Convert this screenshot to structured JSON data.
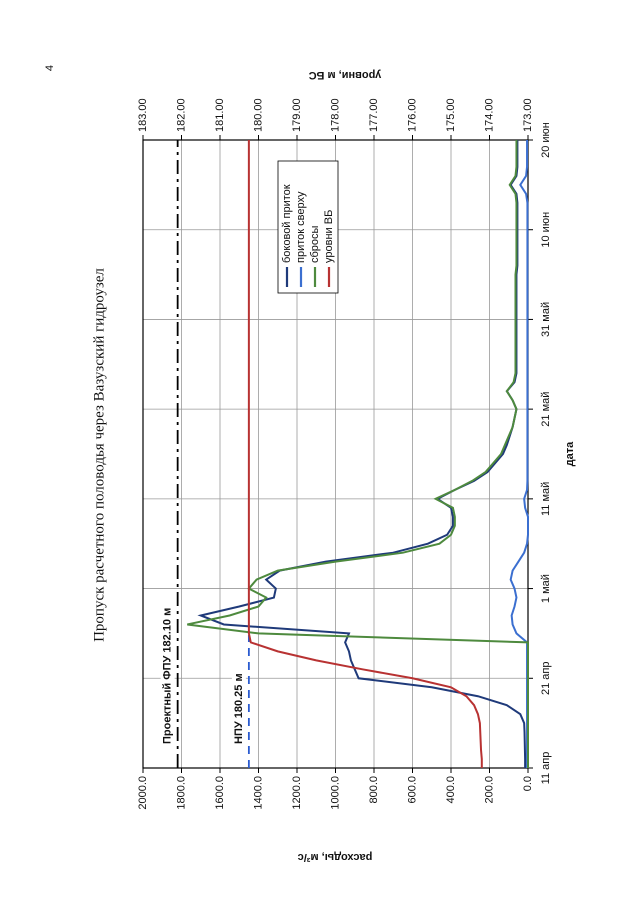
{
  "page_number": "4",
  "chart_data": {
    "type": "line",
    "title": "Пропуск расчетного половодья через Вазузский гидроузел",
    "x_label": "дата",
    "y_label": "расходы, м³/с",
    "y2_label": "уровни, м БС",
    "categories": [
      "11 апр",
      null,
      null,
      null,
      null,
      null,
      null,
      null,
      null,
      null,
      "21 апр",
      null,
      null,
      null,
      null,
      null,
      null,
      null,
      null,
      null,
      "1 май",
      null,
      null,
      null,
      null,
      null,
      null,
      null,
      null,
      null,
      "11 май",
      null,
      null,
      null,
      null,
      null,
      null,
      null,
      null,
      null,
      "21 май",
      null,
      null,
      null,
      null,
      null,
      null,
      null,
      null,
      null,
      "31 май",
      null,
      null,
      null,
      null,
      null,
      null,
      null,
      null,
      null,
      "10 июн",
      null,
      null,
      null,
      null,
      null,
      null,
      null,
      null,
      null,
      "20 июн"
    ],
    "ylim": [
      0,
      2000
    ],
    "yticks": [
      {
        "value": 0,
        "label": "0.0"
      },
      {
        "value": 200,
        "label": "200.0"
      },
      {
        "value": 400,
        "label": "400.0"
      },
      {
        "value": 600,
        "label": "600.0"
      },
      {
        "value": 800,
        "label": "800.0"
      },
      {
        "value": 1000,
        "label": "1000.0"
      },
      {
        "value": 1200,
        "label": "1200.0"
      },
      {
        "value": 1400,
        "label": "1400.0"
      },
      {
        "value": 1600,
        "label": "1600.0"
      },
      {
        "value": 1800,
        "label": "1800.0"
      },
      {
        "value": 2000,
        "label": "2000.0"
      }
    ],
    "y2lim": [
      173,
      183
    ],
    "y2ticks": [
      {
        "value": 173,
        "label": "173.00"
      },
      {
        "value": 174,
        "label": "174.00"
      },
      {
        "value": 175,
        "label": "175.00"
      },
      {
        "value": 176,
        "label": "176.00"
      },
      {
        "value": 177,
        "label": "177.00"
      },
      {
        "value": 178,
        "label": "178.00"
      },
      {
        "value": 179,
        "label": "179.00"
      },
      {
        "value": 180,
        "label": "180.00"
      },
      {
        "value": 181,
        "label": "181.00"
      },
      {
        "value": 182,
        "label": "182.00"
      },
      {
        "value": 183,
        "label": "183.00"
      }
    ],
    "grid": true,
    "legend": "upper right",
    "series": [
      {
        "name": "боковой приток",
        "color": "#1f3a7a",
        "values": [
          15,
          15,
          16,
          17,
          18,
          20,
          40,
          110,
          260,
          500,
          880,
          900,
          920,
          930,
          950,
          930,
          1580,
          1700,
          1500,
          1320,
          1310,
          1360,
          1290,
          1050,
          700,
          520,
          420,
          390,
          390,
          400,
          470,
          380,
          280,
          210,
          170,
          130,
          110,
          95,
          80,
          70,
          60,
          80,
          110,
          70,
          60,
          60,
          60,
          60,
          60,
          60,
          60,
          60,
          60,
          60,
          60,
          60,
          55,
          55,
          55,
          55,
          55,
          55,
          55,
          55,
          60,
          90,
          60,
          55,
          55,
          55,
          55
        ]
      },
      {
        "name": "приток сверху",
        "color": "#3b6fd0",
        "values": [
          5,
          5,
          5,
          5,
          5,
          5,
          5,
          5,
          5,
          5,
          5,
          5,
          5,
          5,
          5,
          60,
          80,
          85,
          70,
          60,
          70,
          90,
          80,
          50,
          20,
          5,
          0,
          0,
          0,
          15,
          20,
          5,
          3,
          3,
          3,
          3,
          3,
          3,
          3,
          3,
          3,
          3,
          3,
          3,
          3,
          3,
          3,
          3,
          3,
          3,
          3,
          3,
          3,
          3,
          3,
          3,
          3,
          3,
          3,
          3,
          3,
          3,
          3,
          3,
          10,
          40,
          10,
          5,
          5,
          5,
          5
        ]
      },
      {
        "name": "сбросы",
        "color": "#4e8a3e",
        "values": [
          0,
          0,
          0,
          0,
          0,
          0,
          0,
          0,
          0,
          0,
          0,
          0,
          0,
          0,
          0,
          1400,
          1770,
          1550,
          1400,
          1360,
          1450,
          1410,
          1300,
          1000,
          650,
          460,
          400,
          380,
          380,
          390,
          480,
          380,
          290,
          220,
          180,
          140,
          120,
          100,
          80,
          70,
          60,
          80,
          110,
          75,
          65,
          65,
          65,
          65,
          65,
          65,
          65,
          65,
          65,
          65,
          65,
          65,
          60,
          60,
          60,
          60,
          60,
          60,
          60,
          60,
          65,
          95,
          65,
          60,
          60,
          60,
          60
        ]
      },
      {
        "name": "уровни ВБ",
        "color": "#b83232",
        "axis": "y2",
        "values": [
          174.2,
          174.2,
          174.22,
          174.23,
          174.24,
          174.25,
          174.3,
          174.4,
          174.6,
          175.0,
          176.0,
          177.3,
          178.5,
          179.5,
          180.2,
          180.25,
          180.25,
          180.25,
          180.25,
          180.25,
          180.25,
          180.25,
          180.25,
          180.25,
          180.25,
          180.25,
          180.25,
          180.25,
          180.25,
          180.25,
          180.25,
          180.25,
          180.25,
          180.25,
          180.25,
          180.25,
          180.25,
          180.25,
          180.25,
          180.25,
          180.25,
          180.25,
          180.25,
          180.25,
          180.25,
          180.25,
          180.25,
          180.25,
          180.25,
          180.25,
          180.25,
          180.25,
          180.25,
          180.25,
          180.25,
          180.25,
          180.25,
          180.25,
          180.25,
          180.25,
          180.25,
          180.25,
          180.25,
          180.25,
          180.25,
          180.25,
          180.25,
          180.25,
          180.25,
          180.25,
          180.25
        ]
      }
    ],
    "annotations": [
      {
        "text": "Проектный ФПУ 182.10 м",
        "value": 182.1,
        "color": "#000000",
        "style": "dash-dot"
      },
      {
        "text": "НПУ 180.25 м",
        "value": 180.25,
        "color": "#2a5bd0",
        "style": "dashed"
      }
    ]
  }
}
